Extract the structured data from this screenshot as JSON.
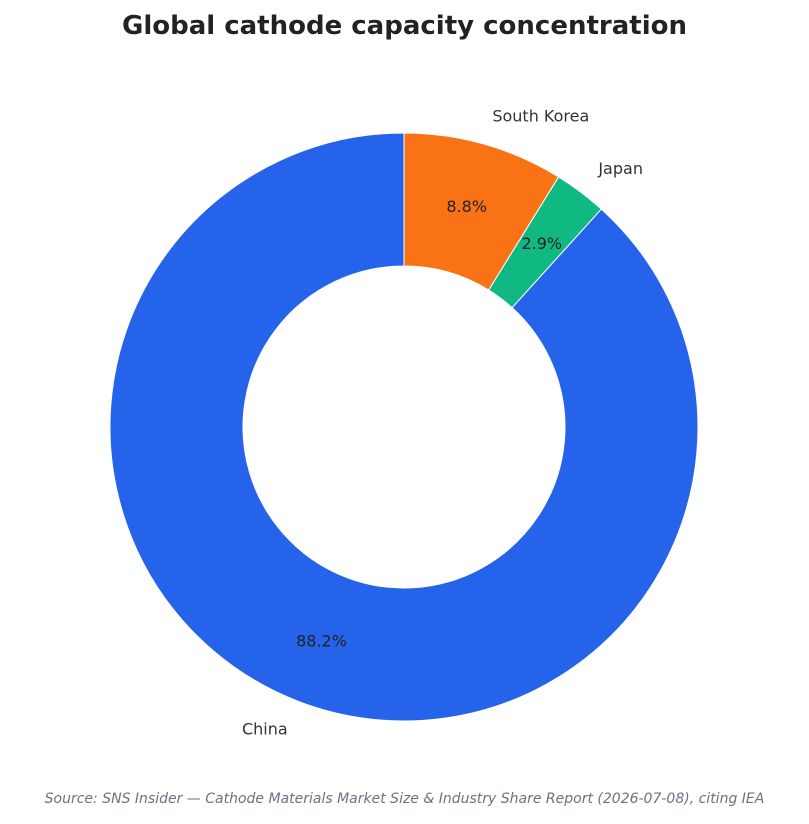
{
  "chart_data": {
    "type": "pie",
    "variant": "donut",
    "title": "Global cathode capacity concentration",
    "start_angle_deg": 90,
    "direction": "counterclockwise",
    "label_format": "{value}%",
    "slices": [
      {
        "label": "China",
        "value": 88.2,
        "color": "#2563eb"
      },
      {
        "label": "Japan",
        "value": 2.9,
        "color": "#10b981"
      },
      {
        "label": "South Korea",
        "value": 8.8,
        "color": "#f97316"
      }
    ]
  },
  "footer": {
    "source": "Source: SNS Insider — Cathode Materials Market Size & Industry Share Report (2026-07-08), citing IEA"
  }
}
